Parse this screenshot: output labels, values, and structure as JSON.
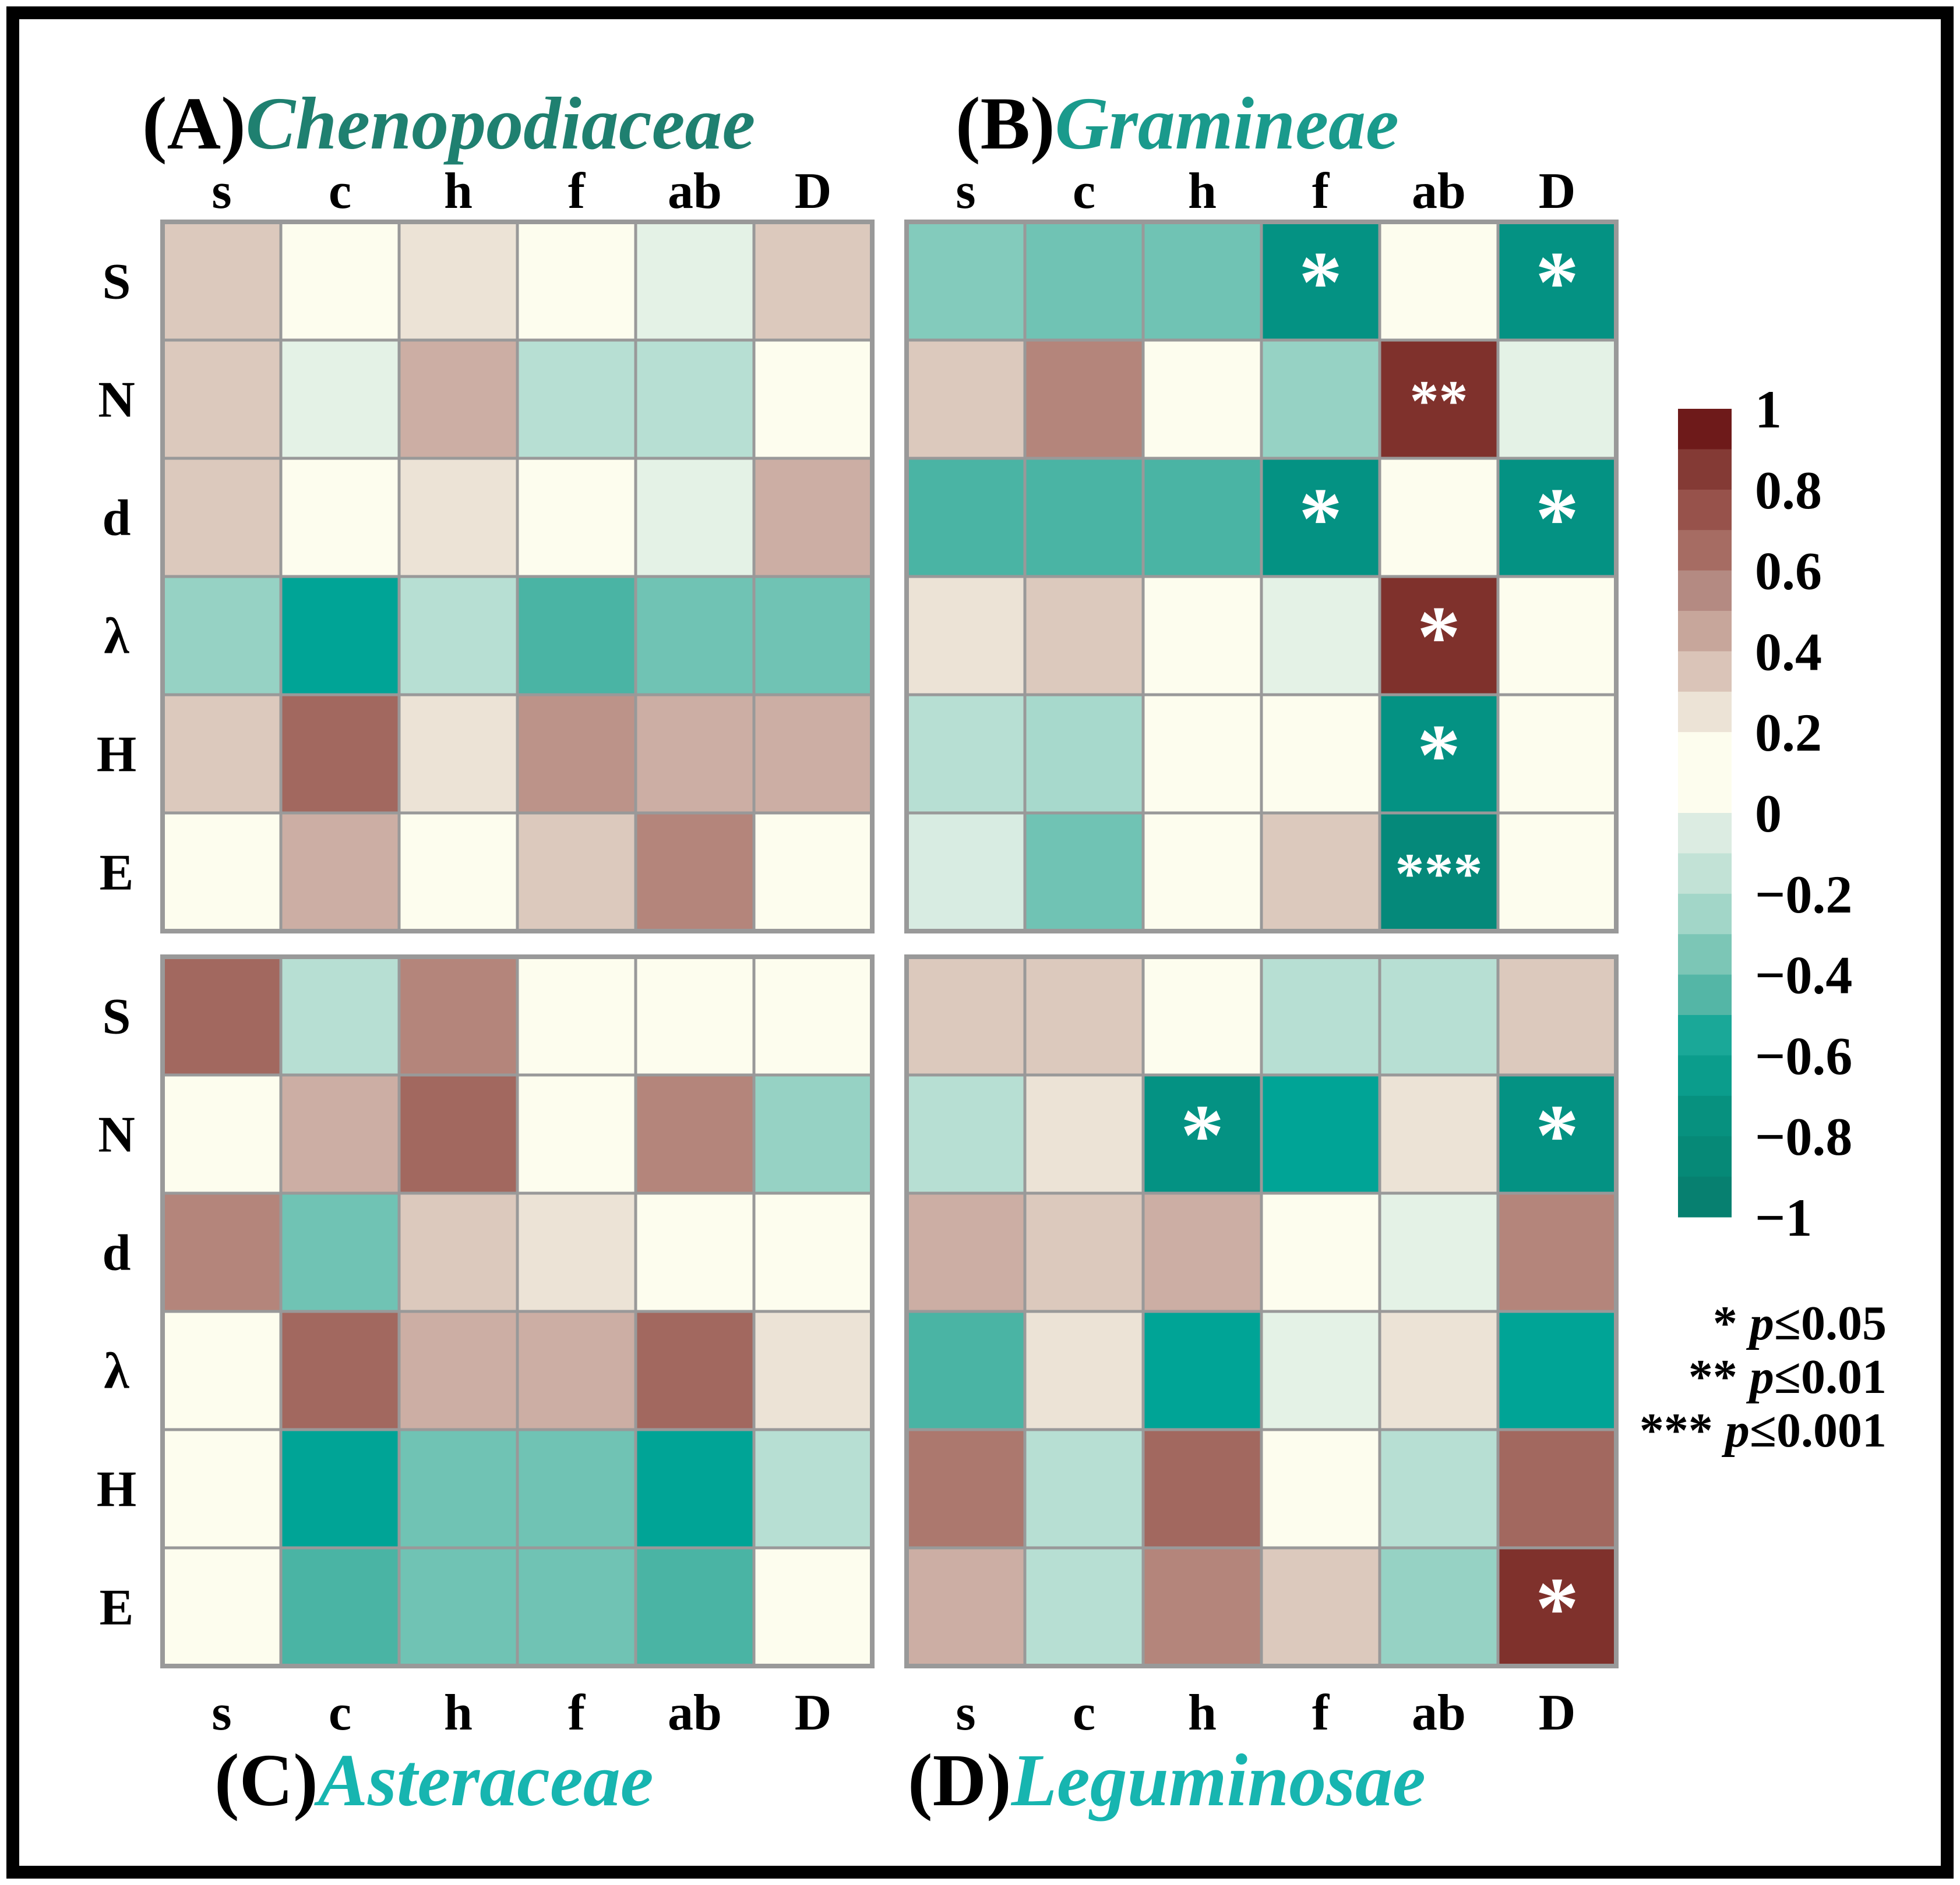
{
  "colors": {
    "frame": "#000000",
    "grid": "#999999",
    "title_a": "#1f8070",
    "title_b": "#1a9a8c",
    "title_c": "#17b5b0",
    "title_d": "#17b5b0",
    "star": "#ffffff"
  },
  "chart_data": {
    "type": "heatmap",
    "columns": [
      "s",
      "c",
      "h",
      "f",
      "ab",
      "D"
    ],
    "rows": [
      "S",
      "N",
      "d",
      "λ",
      "H",
      "E"
    ],
    "value_range": [
      -1,
      1
    ],
    "panels": [
      {
        "label": "(A)",
        "family": "Chenopodiaceae",
        "values": [
          [
            0.3,
            0.0,
            0.2,
            0.0,
            -0.15,
            0.3
          ],
          [
            0.3,
            -0.15,
            0.4,
            -0.3,
            -0.3,
            0.0
          ],
          [
            0.3,
            0.0,
            0.2,
            0.0,
            -0.15,
            0.4
          ],
          [
            -0.4,
            -0.8,
            -0.3,
            -0.6,
            -0.5,
            -0.5
          ],
          [
            0.3,
            0.65,
            0.2,
            0.5,
            0.4,
            0.4
          ],
          [
            0.0,
            0.4,
            0.0,
            0.3,
            0.55,
            0.0
          ]
        ],
        "stars": [
          [
            "",
            "",
            "",
            "",
            "",
            ""
          ],
          [
            "",
            "",
            "",
            "",
            "",
            ""
          ],
          [
            "",
            "",
            "",
            "",
            "",
            ""
          ],
          [
            "",
            "",
            "",
            "",
            "",
            ""
          ],
          [
            "",
            "",
            "",
            "",
            "",
            ""
          ],
          [
            "",
            "",
            "",
            "",
            "",
            ""
          ]
        ]
      },
      {
        "label": "(B)",
        "family": "Gramineae",
        "values": [
          [
            -0.45,
            -0.5,
            -0.5,
            -0.9,
            0.0,
            -0.9
          ],
          [
            0.3,
            0.55,
            0.0,
            -0.4,
            0.85,
            -0.15
          ],
          [
            -0.6,
            -0.6,
            -0.6,
            -0.9,
            0.0,
            -0.9
          ],
          [
            0.2,
            0.3,
            0.0,
            -0.15,
            0.85,
            0.0
          ],
          [
            -0.3,
            -0.35,
            0.0,
            0.0,
            -0.9,
            0.0
          ],
          [
            -0.2,
            -0.5,
            0.0,
            0.3,
            -0.95,
            0.0
          ]
        ],
        "stars": [
          [
            "",
            "",
            "",
            "*",
            "",
            "*"
          ],
          [
            "",
            "",
            "",
            "",
            "**",
            ""
          ],
          [
            "",
            "",
            "",
            "*",
            "",
            "*"
          ],
          [
            "",
            "",
            "",
            "",
            "*",
            ""
          ],
          [
            "",
            "",
            "",
            "",
            "*",
            ""
          ],
          [
            "",
            "",
            "",
            "",
            "***",
            ""
          ]
        ]
      },
      {
        "label": "(C)",
        "family": "Asteraceae",
        "values": [
          [
            0.65,
            -0.3,
            0.55,
            0.0,
            0.0,
            0.0
          ],
          [
            0.0,
            0.4,
            0.65,
            0.0,
            0.55,
            -0.4
          ],
          [
            0.55,
            -0.5,
            0.3,
            0.2,
            0.0,
            0.0
          ],
          [
            0.0,
            0.65,
            0.4,
            0.4,
            0.65,
            0.2
          ],
          [
            0.0,
            -0.8,
            -0.5,
            -0.5,
            -0.8,
            -0.3
          ],
          [
            0.0,
            -0.6,
            -0.5,
            -0.5,
            -0.6,
            0.0
          ]
        ],
        "stars": [
          [
            "",
            "",
            "",
            "",
            "",
            ""
          ],
          [
            "",
            "",
            "",
            "",
            "",
            ""
          ],
          [
            "",
            "",
            "",
            "",
            "",
            ""
          ],
          [
            "",
            "",
            "",
            "",
            "",
            ""
          ],
          [
            "",
            "",
            "",
            "",
            "",
            ""
          ],
          [
            "",
            "",
            "",
            "",
            "",
            ""
          ]
        ]
      },
      {
        "label": "(D)",
        "family": "Leguminosae",
        "values": [
          [
            0.3,
            0.3,
            0.0,
            -0.3,
            -0.3,
            0.3
          ],
          [
            -0.3,
            0.2,
            -0.9,
            -0.8,
            0.2,
            -0.9
          ],
          [
            0.4,
            0.3,
            0.4,
            0.0,
            -0.15,
            0.55
          ],
          [
            -0.6,
            0.2,
            -0.8,
            -0.15,
            0.2,
            -0.8
          ],
          [
            0.6,
            -0.3,
            0.65,
            0.0,
            -0.3,
            0.65
          ],
          [
            0.4,
            -0.3,
            0.55,
            0.3,
            -0.4,
            0.85
          ]
        ],
        "stars": [
          [
            "",
            "",
            "",
            "",
            "",
            ""
          ],
          [
            "",
            "",
            "*",
            "",
            "",
            "*"
          ],
          [
            "",
            "",
            "",
            "",
            "",
            ""
          ],
          [
            "",
            "",
            "",
            "",
            "",
            ""
          ],
          [
            "",
            "",
            "",
            "",
            "",
            ""
          ],
          [
            "",
            "",
            "",
            "",
            "",
            "*"
          ]
        ]
      }
    ],
    "colorbar": {
      "tick_labels": [
        "1",
        "0.8",
        "0.6",
        "0.4",
        "0.2",
        "0",
        "−0.2",
        "−0.4",
        "−0.6",
        "−0.8",
        "−1"
      ],
      "swatches": [
        "#6e1a1a",
        "#843a35",
        "#97524b",
        "#a66c63",
        "#b48a82",
        "#c7a69b",
        "#dac4b8",
        "#ece3d6",
        "#fdfdee",
        "#fdfdee",
        "#dcece2",
        "#c2e2d6",
        "#a2d6c8",
        "#7cc6b6",
        "#54b6a6",
        "#1aa898",
        "#0b9d8c",
        "#07917f",
        "#068977",
        "#078070"
      ]
    },
    "significance": [
      {
        "stars": "*",
        "p": "p",
        "rest": "≤0.05"
      },
      {
        "stars": "**",
        "p": "p",
        "rest": "≤0.01"
      },
      {
        "stars": "***",
        "p": "p",
        "rest": "≤0.001"
      }
    ]
  }
}
